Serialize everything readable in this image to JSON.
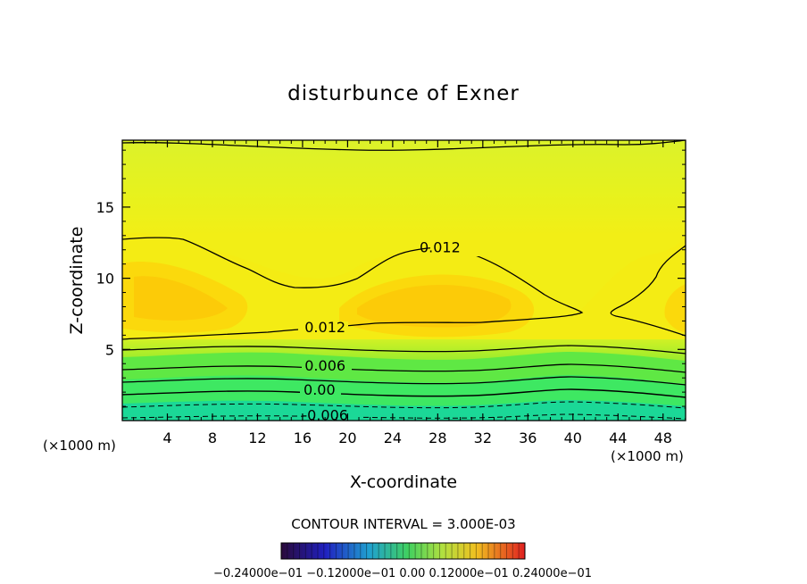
{
  "chart_data": {
    "type": "contour",
    "title": "disturbunce of Exner",
    "xlabel": "X-coordinate",
    "ylabel": "Z-coordinate",
    "x_unit": "(×1000 m)",
    "z_unit": "(×1000 m)",
    "xlim": [
      0,
      50
    ],
    "ylim": [
      0,
      19.7
    ],
    "x_ticks": [
      4,
      8,
      12,
      16,
      20,
      24,
      28,
      32,
      36,
      40,
      44,
      48
    ],
    "y_ticks": [
      5,
      10,
      15
    ],
    "contour_interval_text": "CONTOUR INTERVAL = 3.000E-03",
    "contour_labels": [
      {
        "text": "0.012",
        "x": 28.2,
        "z": 12.2
      },
      {
        "text": "0.012",
        "x": 18.0,
        "z": 6.6
      },
      {
        "text": "0.006",
        "x": 18.0,
        "z": 3.9
      },
      {
        "text": "0.00",
        "x": 17.5,
        "z": 2.2
      },
      {
        "text": "-0.006",
        "x": 18.0,
        "z": 0.4
      }
    ],
    "colorbar": {
      "min": -0.024,
      "max": 0.024,
      "label_text": "−0.24000e−01 −0.12000e−01 0.00 0.12000e−01 0.24000e−01"
    },
    "colors": {
      "lowest": "#1bd897",
      "low": "#3ee862",
      "mid": "#9eec2c",
      "upper": "#d8f22a",
      "high": "#f4ec14",
      "peak": "#fbd70a",
      "core": "#fcc907"
    }
  }
}
